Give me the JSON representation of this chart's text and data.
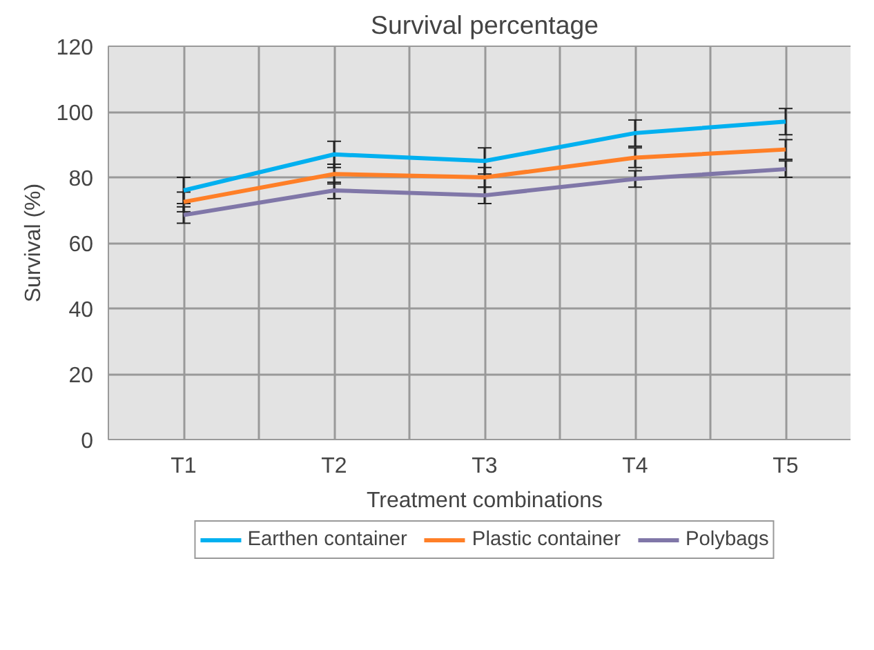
{
  "chart_data": {
    "type": "line",
    "title": "Survival percentage",
    "xlabel": "Treatment combinations",
    "ylabel": "Survival (%)",
    "categories": [
      "T1",
      "T2",
      "T3",
      "T4",
      "T5"
    ],
    "series": [
      {
        "name": "Earthen container",
        "color": "#00b0f0",
        "values": [
          76,
          87,
          85,
          93.5,
          97
        ],
        "errors": [
          4,
          4,
          4,
          4,
          4
        ]
      },
      {
        "name": "Plastic container",
        "color": "#ff7f27",
        "values": [
          72.5,
          81,
          80,
          86,
          88.5
        ],
        "errors": [
          3,
          3,
          3,
          3,
          3
        ]
      },
      {
        "name": "Polybags",
        "color": "#8077a8",
        "values": [
          68.5,
          76,
          74.5,
          79.5,
          82.5
        ],
        "errors": [
          2.5,
          2.5,
          2.5,
          2.5,
          2.5
        ]
      }
    ],
    "ylim": [
      0,
      120
    ],
    "yticks": [
      0,
      20,
      40,
      60,
      80,
      100,
      120
    ],
    "grid": true,
    "legend": "bottom",
    "marker": "none",
    "line_style": "solid"
  }
}
